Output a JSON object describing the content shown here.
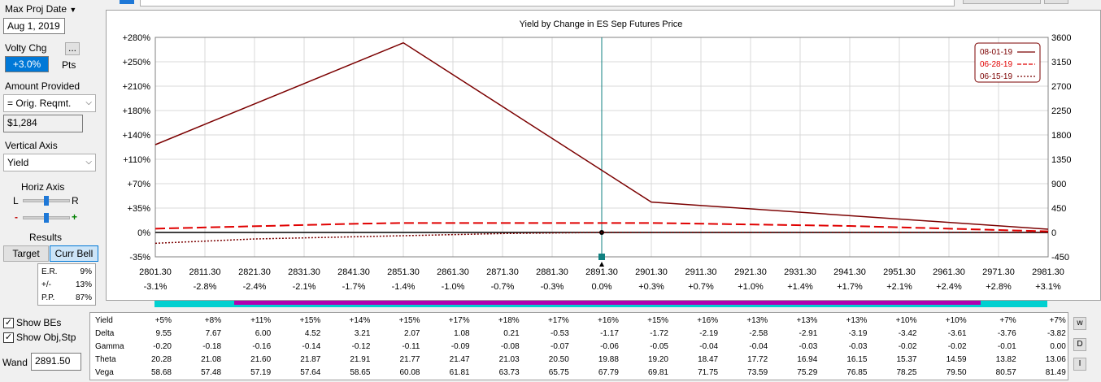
{
  "controls": {
    "max_proj_date_label": "Max Proj Date",
    "max_proj_date_value": "Aug 1, 2019",
    "volty_label": "Volty Chg",
    "volty_button": "...",
    "volty_value": "+3.0%",
    "volty_unit": "Pts",
    "amount_label": "Amount Provided",
    "amount_option": "= Orig. Reqmt.",
    "amount_value": "$1,284",
    "vertical_axis_label": "Vertical Axis",
    "vertical_axis_value": "Yield",
    "horiz_axis_label": "Horiz Axis",
    "slider_left": "L",
    "slider_right": "R",
    "slider_minus": "-",
    "slider_plus": "+",
    "results_label": "Results",
    "target_button": "Target",
    "curr_bell_button": "Curr Bell",
    "stats": [
      {
        "k": "E.R.",
        "v": "9%"
      },
      {
        "k": "+/-",
        "v": "13%"
      },
      {
        "k": "P.P.",
        "v": "87%"
      }
    ],
    "show_bes_label": "Show BEs",
    "show_bes_checked": true,
    "show_objstp_label": "Show Obj,Stp",
    "show_objstp_checked": true,
    "wand_label": "Wand",
    "wand_value": "2891.50"
  },
  "chart_data": {
    "type": "line",
    "title": "Yield by Change in ES Sep Futures Price",
    "x_ticks": [
      "2801.30",
      "2811.30",
      "2821.30",
      "2831.30",
      "2841.30",
      "2851.30",
      "2861.30",
      "2871.30",
      "2881.30",
      "2891.30",
      "2901.30",
      "2911.30",
      "2921.30",
      "2931.30",
      "2941.30",
      "2951.30",
      "2961.30",
      "2971.30",
      "2981.30"
    ],
    "x_pct_ticks": [
      "-3.1%",
      "-2.8%",
      "-2.4%",
      "-2.1%",
      "-1.7%",
      "-1.4%",
      "-1.0%",
      "-0.7%",
      "-0.3%",
      "0.0%",
      "+0.3%",
      "+0.7%",
      "+1.0%",
      "+1.4%",
      "+1.7%",
      "+2.1%",
      "+2.4%",
      "+2.8%",
      "+3.1%"
    ],
    "xlim": [
      2801.3,
      2981.3
    ],
    "y_left_ticks": [
      "+280%",
      "+250%",
      "+210%",
      "+180%",
      "+140%",
      "+110%",
      "+70%",
      "+35%",
      "0%",
      "-35%"
    ],
    "y_right_ticks": [
      "3600",
      "3150",
      "2700",
      "2250",
      "1800",
      "1350",
      "900",
      "450",
      "0",
      "-450"
    ],
    "ylim_right": [
      -450,
      3600
    ],
    "current_price": 2891.3,
    "series": [
      {
        "name": "08-01-19",
        "color": "#7b0000",
        "style": "solid",
        "x": [
          2801.3,
          2851.3,
          2901.3,
          2981.3
        ],
        "y": [
          1620,
          3500,
          560,
          60
        ]
      },
      {
        "name": "06-28-19",
        "color": "#e00000",
        "style": "dashed",
        "x": [
          2801.3,
          2841.3,
          2851.3,
          2901.3,
          2941.3,
          2981.3
        ],
        "y": [
          70,
          160,
          175,
          175,
          120,
          20
        ]
      },
      {
        "name": "06-15-19",
        "color": "#7b0000",
        "style": "dotted",
        "x": [
          2801.3,
          2821.3,
          2851.3,
          2871.3,
          2891.3,
          2981.3
        ],
        "y": [
          -200,
          -120,
          -60,
          -20,
          0,
          0
        ]
      }
    ]
  },
  "greeks": {
    "rows": [
      {
        "name": "Yield",
        "values": [
          "+5%",
          "+8%",
          "+11%",
          "+15%",
          "+14%",
          "+15%",
          "+17%",
          "+18%",
          "+17%",
          "+16%",
          "+15%",
          "+16%",
          "+13%",
          "+13%",
          "+13%",
          "+10%",
          "+10%",
          "+7%",
          "+7%"
        ]
      },
      {
        "name": "Delta",
        "values": [
          "9.55",
          "7.67",
          "6.00",
          "4.52",
          "3.21",
          "2.07",
          "1.08",
          "0.21",
          "-0.53",
          "-1.17",
          "-1.72",
          "-2.19",
          "-2.58",
          "-2.91",
          "-3.19",
          "-3.42",
          "-3.61",
          "-3.76",
          "-3.82"
        ]
      },
      {
        "name": "Gamma",
        "values": [
          "-0.20",
          "-0.18",
          "-0.16",
          "-0.14",
          "-0.12",
          "-0.11",
          "-0.09",
          "-0.08",
          "-0.07",
          "-0.06",
          "-0.05",
          "-0.04",
          "-0.04",
          "-0.03",
          "-0.03",
          "-0.02",
          "-0.02",
          "-0.01",
          "0.00"
        ]
      },
      {
        "name": "Theta",
        "values": [
          "20.28",
          "21.08",
          "21.60",
          "21.87",
          "21.91",
          "21.77",
          "21.47",
          "21.03",
          "20.50",
          "19.88",
          "19.20",
          "18.47",
          "17.72",
          "16.94",
          "16.15",
          "15.37",
          "14.59",
          "13.82",
          "13.06"
        ]
      },
      {
        "name": "Vega",
        "values": [
          "58.68",
          "57.48",
          "57.19",
          "57.64",
          "58.65",
          "60.08",
          "61.81",
          "63.73",
          "65.75",
          "67.79",
          "69.81",
          "71.75",
          "73.59",
          "75.29",
          "76.85",
          "78.25",
          "79.50",
          "80.57",
          "81.49"
        ]
      }
    ],
    "side_buttons": [
      "w",
      "D",
      "I"
    ]
  }
}
